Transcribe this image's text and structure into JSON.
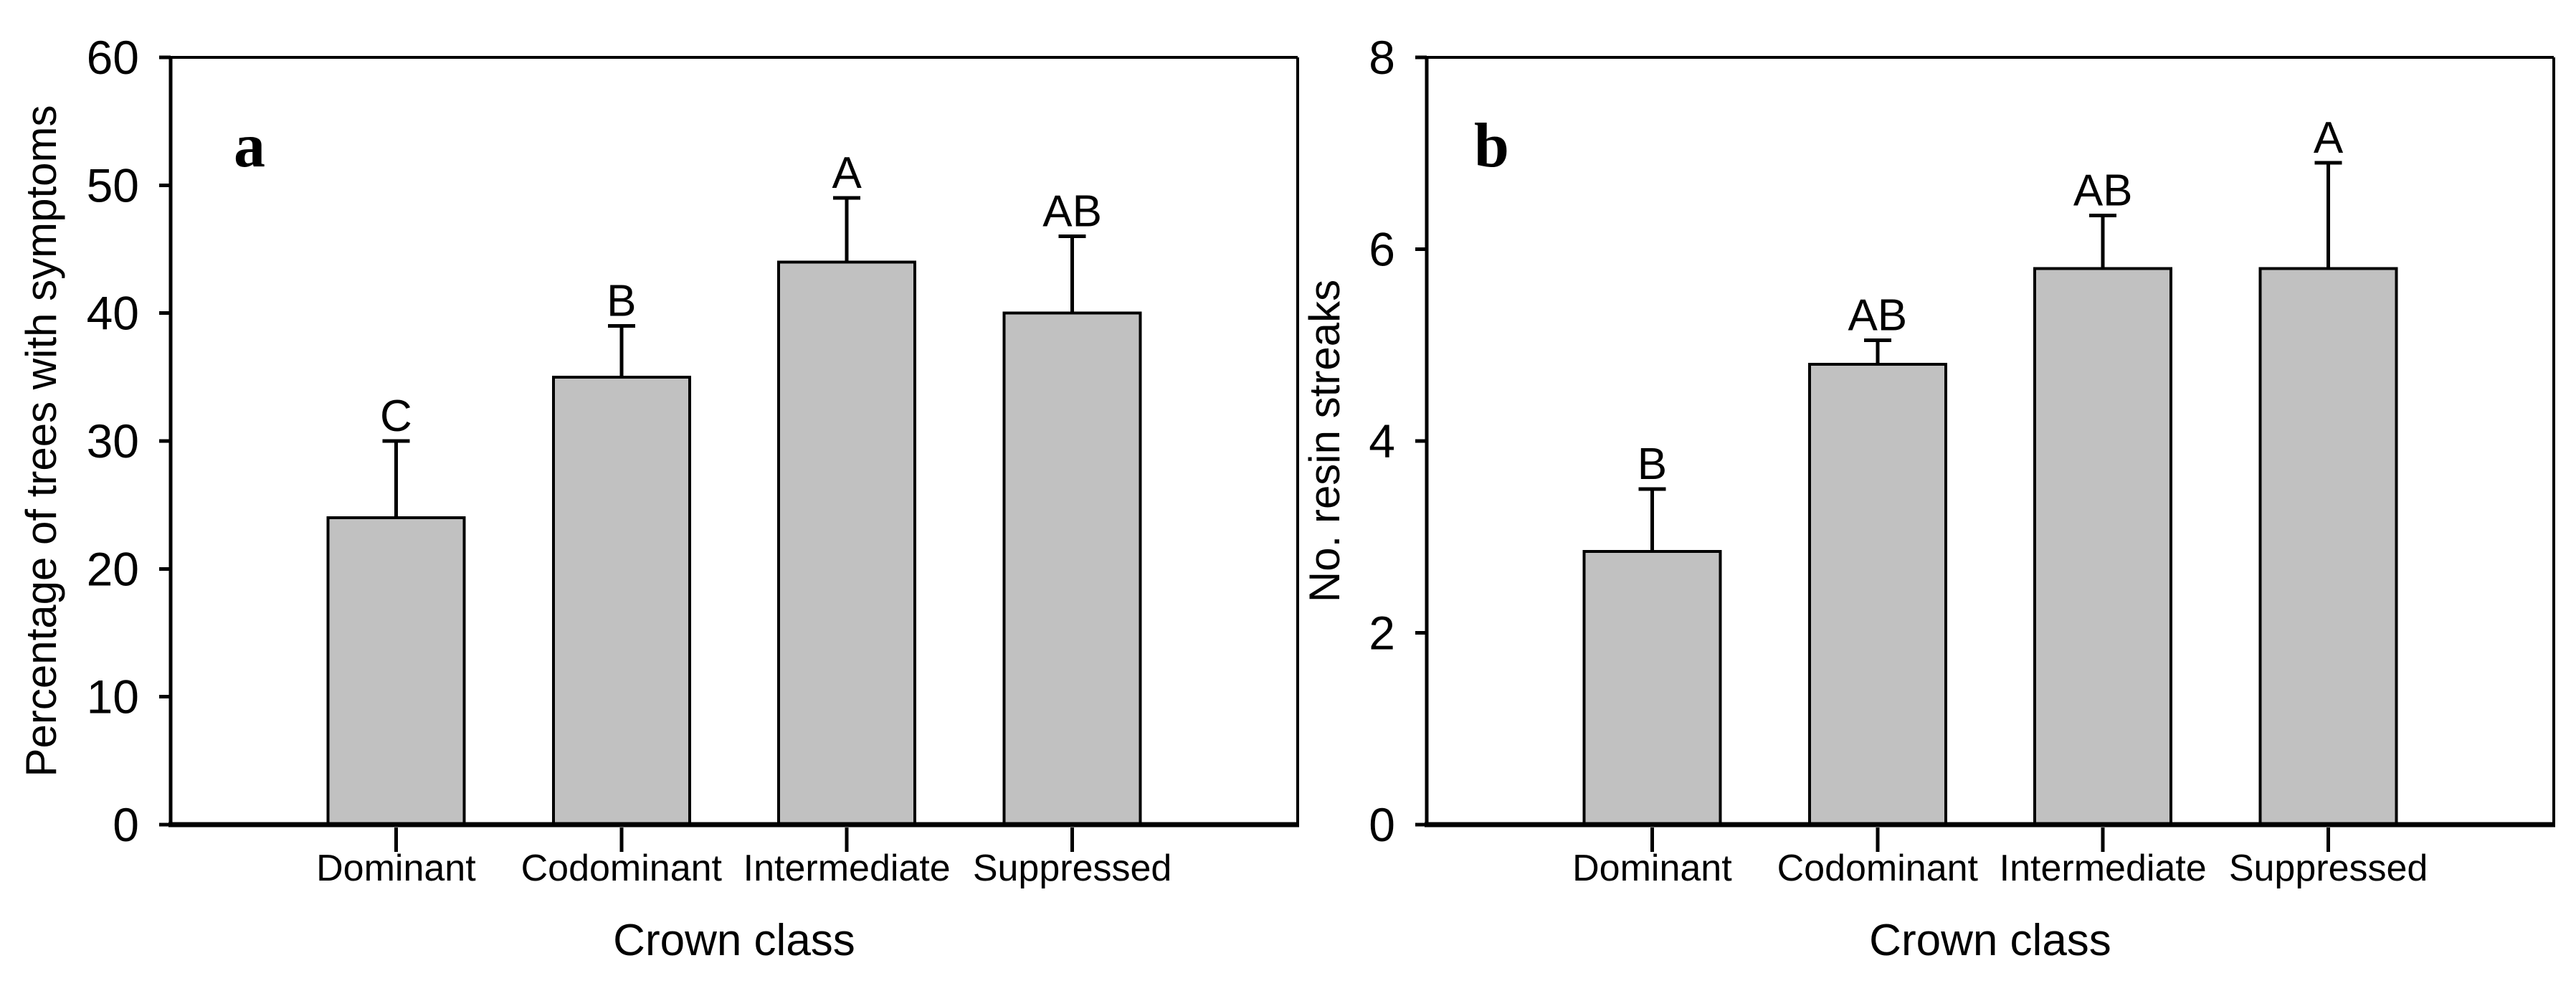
{
  "figure": {
    "background_color": "#ffffff",
    "bar_fill_color": "#c1c1c1",
    "bar_stroke_color": "#000000",
    "axis_color": "#000000"
  },
  "chart_data": [
    {
      "type": "bar",
      "panel_label": "a",
      "title": "",
      "xlabel": "Crown class",
      "ylabel": "Percentage of trees with symptoms",
      "categories": [
        "Dominant",
        "Codominant",
        "Intermediate",
        "Suppressed"
      ],
      "values": [
        24,
        35,
        44,
        40
      ],
      "error_upper": [
        6,
        4,
        5,
        6
      ],
      "significance_letters": [
        "C",
        "B",
        "A",
        "AB"
      ],
      "ylim": [
        0,
        60
      ],
      "yticks": [
        0,
        10,
        20,
        30,
        40,
        50,
        60
      ],
      "grid": false,
      "legend": "none",
      "bar_fill": "#c1c1c1",
      "bar_stroke": "#000000"
    },
    {
      "type": "bar",
      "panel_label": "b",
      "title": "",
      "xlabel": "Crown class",
      "ylabel": "No. resin streaks",
      "categories": [
        "Dominant",
        "Codominant",
        "Intermediate",
        "Suppressed"
      ],
      "values": [
        2.85,
        4.8,
        5.8,
        5.8
      ],
      "error_upper": [
        0.65,
        0.25,
        0.55,
        1.1
      ],
      "significance_letters": [
        "B",
        "AB",
        "AB",
        "A"
      ],
      "ylim": [
        0,
        8
      ],
      "yticks": [
        0,
        2,
        4,
        6,
        8
      ],
      "grid": false,
      "legend": "none",
      "bar_fill": "#c1c1c1",
      "bar_stroke": "#000000"
    }
  ]
}
